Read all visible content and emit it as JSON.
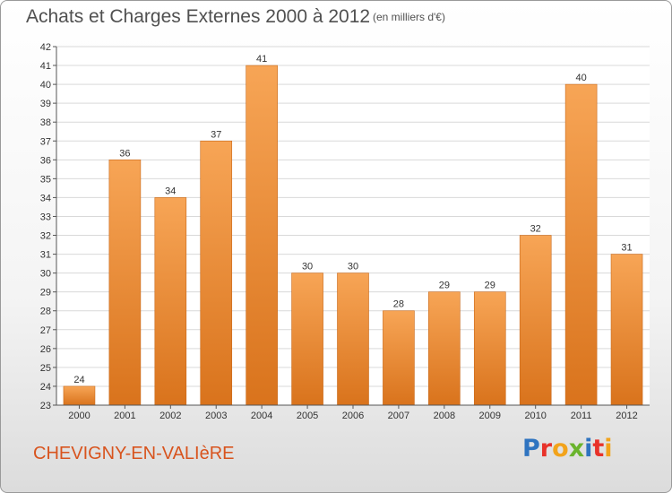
{
  "chart_data": {
    "type": "bar",
    "title": "Achats et Charges Externes 2000 à 2012",
    "unit_note": "(en milliers d'€)",
    "categories": [
      "2000",
      "2001",
      "2002",
      "2003",
      "2004",
      "2005",
      "2006",
      "2007",
      "2008",
      "2009",
      "2010",
      "2011",
      "2012"
    ],
    "values": [
      24,
      36,
      34,
      37,
      41,
      30,
      30,
      28,
      29,
      29,
      32,
      40,
      31
    ],
    "ylim": [
      23,
      42
    ],
    "yticks": [
      23,
      24,
      25,
      26,
      27,
      28,
      29,
      30,
      31,
      32,
      33,
      34,
      35,
      36,
      37,
      38,
      39,
      40,
      41,
      42
    ],
    "grid": true,
    "bar_color": "#f28c2a",
    "data_labels": true
  },
  "footer": {
    "commune": "CHEVIGNY-EN-VALIèRE",
    "logo_text": "Proxiti",
    "logo_letters": [
      {
        "ch": "P",
        "color": "#2f74c0"
      },
      {
        "ch": "r",
        "color": "#e8322a"
      },
      {
        "ch": "o",
        "color": "#f2a31b"
      },
      {
        "ch": "x",
        "color": "#6ab42d"
      },
      {
        "ch": "i",
        "color": "#2f74c0"
      },
      {
        "ch": "t",
        "color": "#e8322a"
      },
      {
        "ch": "i",
        "color": "#f2a31b"
      }
    ]
  }
}
